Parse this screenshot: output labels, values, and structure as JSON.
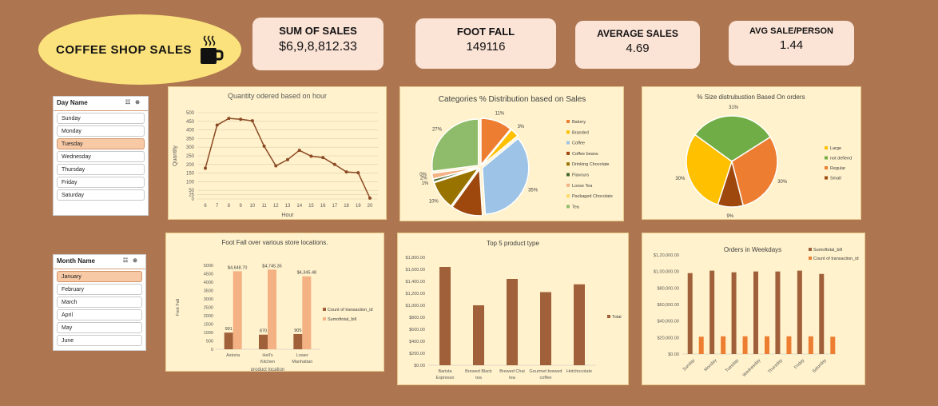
{
  "header": {
    "title": "COFFEE  SHOP SALES",
    "kpis": [
      {
        "label": "SUM OF SALES",
        "value": "$6,9,8,812.33"
      },
      {
        "label": "FOOT FALL",
        "value": "149116"
      },
      {
        "label": "AVERAGE SALES",
        "value": "4.69"
      },
      {
        "label": "AVG SALE/PERSON",
        "value": "1.44"
      }
    ]
  },
  "slicers": {
    "day": {
      "title": "Day Name",
      "items": [
        "Sunday",
        "Monday",
        "Tuesday",
        "Wednesday",
        "Thursday",
        "Friday",
        "Saturday"
      ],
      "selected": "Tuesday"
    },
    "month": {
      "title": "Month Name",
      "items": [
        "January",
        "February",
        "March",
        "April",
        "May",
        "June"
      ],
      "selected": "January"
    }
  },
  "colors": {
    "background": "#ad7550",
    "panel": "#fff2cc",
    "line": "#8b4a24",
    "bar_dark": "#a0603a",
    "bar_light": "#f4b183",
    "bar_orange": "#ed7d31"
  },
  "chart_data": [
    {
      "id": "hour",
      "type": "line",
      "title": "Quantity odered based on hour",
      "xlabel": "Hour",
      "ylabel": "Quantity",
      "x": [
        6,
        7,
        8,
        9,
        10,
        11,
        12,
        13,
        14,
        15,
        16,
        17,
        18,
        19,
        20
      ],
      "values": [
        178,
        428,
        467,
        462,
        453,
        306,
        192,
        228,
        282,
        248,
        240,
        200,
        157,
        152,
        5
      ],
      "ylim": [
        0,
        500
      ],
      "yticks": [
        0,
        25,
        50,
        100,
        150,
        200,
        250,
        300,
        350,
        400,
        450,
        500
      ],
      "grid": true
    },
    {
      "id": "categories",
      "type": "pie",
      "title": "Categories % Distribution based on Sales",
      "categories": [
        "Bakery",
        "Branded",
        "Coffee",
        "Coffee beans",
        "Drinking Chocolate",
        "Flavours",
        "Loose Tea",
        "Packaged Chocolate",
        "Tea"
      ],
      "values": [
        11,
        3,
        35,
        11,
        10,
        1,
        2,
        0,
        27
      ],
      "labels": [
        "11%",
        "3%",
        "35%",
        "11%",
        "10%",
        "1%",
        "2%",
        "0%",
        "27%"
      ],
      "colors": [
        "#ed7d31",
        "#ffc000",
        "#9dc3e6",
        "#9e480e",
        "#997300",
        "#43682b",
        "#f4b183",
        "#ffd966",
        "#8fbc6a"
      ],
      "legend": "right"
    },
    {
      "id": "sizes",
      "type": "pie",
      "title": "% Size distrubustion Based On orders",
      "categories": [
        "Large",
        "not defiend",
        "Regular",
        "Small"
      ],
      "values": [
        30,
        31,
        30,
        9
      ],
      "labels": [
        "30%",
        "31%",
        "30%",
        "9%"
      ],
      "colors": [
        "#ffc000",
        "#70ad47",
        "#ed7d31",
        "#9e480e"
      ],
      "legend": "right"
    },
    {
      "id": "footfall",
      "type": "bar",
      "title": "Foot Fall over various store locations.",
      "xlabel": "product location",
      "ylabel": "Foot Fall",
      "categories": [
        "Astoria",
        "Hell's Kitchen",
        "Lower Manhattan"
      ],
      "series": [
        {
          "name": "Count of transaction_id",
          "values": [
            991,
            870,
            905
          ],
          "labels": [
            "991",
            "870",
            "905"
          ]
        },
        {
          "name": "Sumoftotal_bill",
          "values": [
            4648.7,
            4745.35,
            4345.48
          ],
          "labels": [
            "$4,648.70",
            "$4,745.35",
            "$4,345.48"
          ]
        }
      ],
      "ylim": [
        0,
        5000
      ],
      "yticks": [
        "0",
        "500",
        "1000",
        "1500",
        "2000",
        "2500",
        "3000",
        "3500",
        "4000",
        "4500",
        "5000"
      ],
      "legend": "right"
    },
    {
      "id": "top5",
      "type": "bar",
      "title": "Top 5 product type",
      "categories": [
        "Barista Espresso",
        "Brewed Black tea",
        "Brewed Chai tea",
        "Gourmet brewed coffee",
        "Hotchocolate"
      ],
      "series": [
        {
          "name": "Total",
          "values": [
            1640,
            1000,
            1440,
            1220,
            1350
          ]
        }
      ],
      "ylim": [
        0,
        1800
      ],
      "yticks": [
        "$0.00",
        "$200.00",
        "$400.00",
        "$600.00",
        "$800.00",
        "$1,000.00",
        "$1,200.00",
        "$1,400.00",
        "$1,600.00",
        "$1,800.00"
      ],
      "legend": "right"
    },
    {
      "id": "weekdays",
      "type": "bar",
      "title": "Orders in Weekdays",
      "categories": [
        "Sunday",
        "Monday",
        "Tuesday",
        "Wednesday",
        "Thursday",
        "Friday",
        "Saturday"
      ],
      "series": [
        {
          "name": "Sumoftotal_bill",
          "values": [
            98000,
            101000,
            99000,
            100000,
            100000,
            101000,
            97000
          ]
        },
        {
          "name": "Count of transaction_id",
          "values": [
            21000,
            21500,
            21500,
            21500,
            21500,
            21500,
            21000
          ]
        }
      ],
      "ylim": [
        0,
        120000
      ],
      "yticks": [
        "$0.00",
        "$20,000.00",
        "$40,000.00",
        "$60,000.00",
        "$80,000.00",
        "$1,00,000.00",
        "$1,20,000.00"
      ],
      "legend": "top-right"
    }
  ]
}
